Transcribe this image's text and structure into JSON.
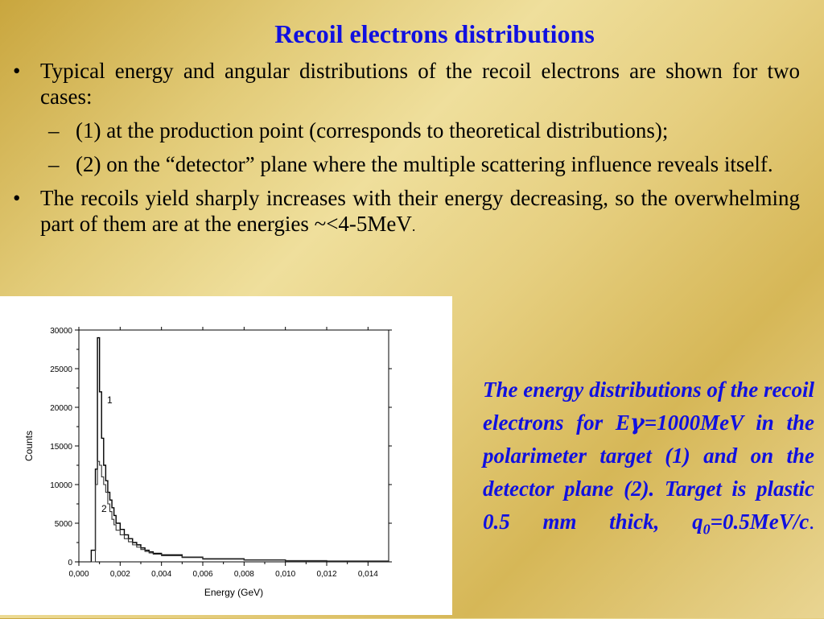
{
  "slide": {
    "title": "Recoil electrons distributions",
    "bullets": [
      {
        "mark": "•",
        "text": "Typical energy and angular distributions of the recoil electrons are shown for two cases:"
      },
      {
        "mark": "–",
        "text": "(1) at the production point (corresponds to theoretical distributions);",
        "sub": true
      },
      {
        "mark": "–",
        "text": "(2) on the “detector” plane where the multiple scattering influence reveals itself.",
        "sub": true
      },
      {
        "mark": "•",
        "text": "The recoils yield sharply increases with their energy decreasing, so the overwhelming part of them are at the energies ~<4-5MeV",
        "suffix": "."
      }
    ],
    "caption": {
      "part1": "The energy distributions of the recoil electrons for E",
      "gamma": "γ",
      "part2": "=1000MeV in the polarimeter target (1) and on the detector plane (2). Target is plastic 0.5 mm thick, q",
      "sub": "0",
      "part3": "=0.5MeV/c",
      "end": "."
    }
  },
  "chart_data": {
    "type": "line",
    "xlabel": "Energy (GeV)",
    "ylabel": "Counts",
    "xlim": [
      0,
      0.015
    ],
    "ylim": [
      0,
      30000
    ],
    "xticks": [
      "0,000",
      "0,002",
      "0,004",
      "0,006",
      "0,008",
      "0,010",
      "0,012",
      "0,014"
    ],
    "yticks": [
      "0",
      "5000",
      "10000",
      "15000",
      "20000",
      "25000",
      "30000"
    ],
    "bin_edges": [
      0.0006,
      0.0008,
      0.0009,
      0.001,
      0.0011,
      0.0012,
      0.0013,
      0.0014,
      0.0015,
      0.0016,
      0.0017,
      0.0018,
      0.002,
      0.0022,
      0.0024,
      0.0026,
      0.0028,
      0.003,
      0.0032,
      0.0034,
      0.0036,
      0.004,
      0.005,
      0.006,
      0.008,
      0.01,
      0.012,
      0.015
    ],
    "series": [
      {
        "name": "1",
        "values": [
          1500,
          12000,
          29000,
          22000,
          16000,
          12500,
          10500,
          9000,
          8000,
          7000,
          6000,
          5000,
          4200,
          3500,
          3000,
          2500,
          2200,
          1800,
          1500,
          1300,
          1100,
          900,
          600,
          400,
          250,
          150,
          100
        ]
      },
      {
        "name": "2",
        "values": [
          0,
          10000,
          13000,
          12500,
          11000,
          10000,
          9000,
          7500,
          6500,
          5500,
          4800,
          4100,
          3500,
          3000,
          2600,
          2200,
          1900,
          1600,
          1350,
          1150,
          1000,
          800,
          550,
          350,
          230,
          140,
          90
        ]
      }
    ],
    "annotations": [
      "1",
      "2"
    ]
  }
}
